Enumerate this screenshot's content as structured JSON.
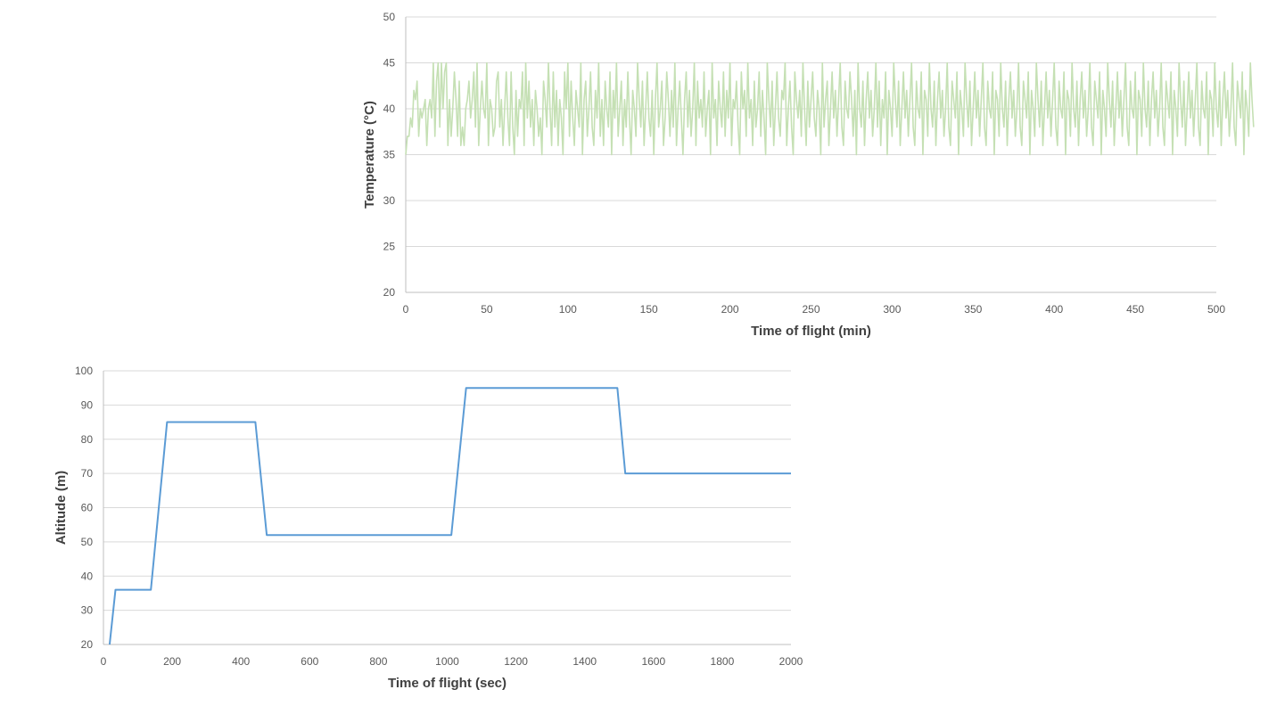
{
  "chart_data": [
    {
      "type": "line",
      "title": "",
      "xlabel": "Time of flight (min)",
      "ylabel": "Temperature (°C)",
      "xlim": [
        0,
        500
      ],
      "ylim": [
        20,
        50
      ],
      "x_ticks": [
        0,
        50,
        100,
        150,
        200,
        250,
        300,
        350,
        400,
        450,
        500
      ],
      "y_ticks": [
        20,
        25,
        30,
        35,
        40,
        45,
        50
      ],
      "grid": true,
      "legend": "none",
      "series": [
        {
          "color": "#c5e0b4",
          "x_start": 0,
          "x_step": 1,
          "y_min": 35,
          "y_max": 45,
          "values": [
            35,
            37,
            37,
            39,
            38,
            42,
            41,
            43,
            37,
            40,
            39,
            40,
            41,
            36,
            40,
            41,
            39,
            45,
            37,
            43,
            45,
            38,
            45,
            40,
            44,
            45,
            36,
            41,
            37,
            40,
            44,
            41,
            37,
            43,
            36,
            38,
            36,
            40,
            41,
            43,
            39,
            41,
            44,
            38,
            45,
            36,
            40,
            43,
            40,
            39,
            45,
            36,
            41,
            40,
            37,
            38,
            43,
            44,
            38,
            41,
            36,
            40,
            44,
            39,
            36,
            44,
            38,
            35,
            42,
            37,
            41,
            40,
            44,
            36,
            45,
            39,
            43,
            38,
            41,
            36,
            42,
            40,
            37,
            39,
            35,
            43,
            41,
            38,
            45,
            40,
            36,
            44,
            38,
            42,
            36,
            41,
            39,
            35,
            44,
            40,
            45,
            37,
            43,
            39,
            36,
            42,
            40,
            38,
            45,
            35,
            41,
            43,
            37,
            40,
            44,
            38,
            36,
            42,
            39,
            45,
            37,
            41,
            36,
            43,
            40,
            38,
            44,
            35,
            42,
            39,
            45,
            37,
            40,
            43,
            36,
            41,
            38,
            44,
            39,
            35,
            42,
            40,
            37,
            45,
            41,
            38,
            43,
            36,
            40,
            44,
            39,
            37,
            42,
            35,
            41,
            45,
            38,
            40,
            43,
            36,
            39,
            44,
            41,
            37,
            42,
            38,
            45,
            36,
            40,
            43,
            39,
            35,
            41,
            44,
            38,
            42,
            37,
            40,
            45,
            36,
            43,
            39,
            41,
            38,
            44,
            37,
            40,
            42,
            35,
            45,
            39,
            41,
            36,
            43,
            40,
            38,
            44,
            37,
            42,
            39,
            45,
            36,
            41,
            40,
            43,
            38,
            35,
            44,
            40,
            42,
            37,
            45,
            39,
            41,
            36,
            43,
            38,
            40,
            44,
            37,
            42,
            39,
            35,
            45,
            41,
            38,
            43,
            36,
            40,
            44,
            39,
            37,
            42,
            41,
            45,
            36,
            40,
            43,
            38,
            35,
            44,
            41,
            39,
            42,
            37,
            45,
            40,
            36,
            43,
            38,
            41,
            44,
            39,
            37,
            42,
            40,
            35,
            45,
            38,
            41,
            43,
            36,
            40,
            44,
            39,
            42,
            37,
            41,
            45,
            38,
            36,
            43,
            40,
            39,
            44,
            41,
            37,
            42,
            35,
            45,
            40,
            38,
            43,
            36,
            41,
            44,
            39,
            42,
            37,
            40,
            45,
            38,
            43,
            36,
            41,
            39,
            44,
            35,
            42,
            40,
            37,
            45,
            41,
            38,
            43,
            36,
            40,
            44,
            39,
            42,
            37,
            41,
            45,
            38,
            36,
            43,
            40,
            39,
            44,
            35,
            42,
            41,
            37,
            45,
            40,
            38,
            43,
            36,
            41,
            44,
            39,
            42,
            37,
            40,
            45,
            38,
            36,
            43,
            41,
            39,
            44,
            35,
            42,
            40,
            37,
            45,
            41,
            38,
            43,
            36,
            40,
            44,
            39,
            42,
            37,
            41,
            45,
            38,
            36,
            43,
            40,
            39,
            44,
            35,
            42,
            41,
            37,
            45,
            40,
            38,
            43,
            36,
            41,
            44,
            39,
            42,
            37,
            40,
            45,
            38,
            36,
            43,
            41,
            39,
            44,
            35,
            42,
            40,
            37,
            45,
            41,
            38,
            43,
            36,
            40,
            44,
            39,
            42,
            37,
            41,
            45,
            38,
            36,
            43,
            40,
            39,
            44,
            35,
            42,
            41,
            37,
            45,
            40,
            38,
            43,
            36,
            41,
            44,
            39,
            42,
            37,
            40,
            45,
            38,
            36,
            43,
            41,
            39,
            44,
            35,
            42,
            40,
            37,
            45,
            41,
            38,
            43,
            36,
            40,
            44,
            39,
            42,
            37,
            41,
            45,
            38,
            36,
            43,
            40,
            39,
            44,
            35,
            42,
            41,
            37,
            45,
            40,
            38,
            43,
            36,
            41,
            44,
            39,
            42,
            37,
            40,
            45,
            38,
            36,
            43,
            41,
            39,
            44,
            35,
            42,
            40,
            37,
            45,
            41,
            38,
            43,
            36,
            40,
            44,
            39,
            42,
            37,
            41,
            45,
            38,
            36,
            43,
            40,
            39,
            44,
            35,
            42,
            41,
            37,
            45,
            40,
            38,
            43,
            36,
            41,
            44,
            39,
            42,
            37,
            40,
            45,
            38,
            36,
            43,
            41,
            39,
            44,
            35,
            42,
            40,
            37,
            45,
            41,
            38
          ]
        }
      ]
    },
    {
      "type": "line",
      "title": "",
      "xlabel": "Time of flight (sec)",
      "ylabel": "Altitude (m)",
      "xlim": [
        0,
        2000
      ],
      "ylim": [
        20,
        100
      ],
      "x_ticks": [
        0,
        200,
        400,
        600,
        800,
        1000,
        1200,
        1400,
        1600,
        1800,
        2000
      ],
      "y_ticks": [
        20,
        30,
        40,
        50,
        60,
        70,
        80,
        90,
        100
      ],
      "grid": true,
      "legend": "none",
      "series": [
        {
          "color": "#5b9bd5",
          "x": [
            18,
            35,
            138,
            185,
            442,
            475,
            1012,
            1055,
            1495,
            1518,
            2000
          ],
          "values": [
            20,
            36,
            36,
            85,
            85,
            52,
            52,
            95,
            95,
            70,
            70
          ]
        }
      ]
    }
  ]
}
